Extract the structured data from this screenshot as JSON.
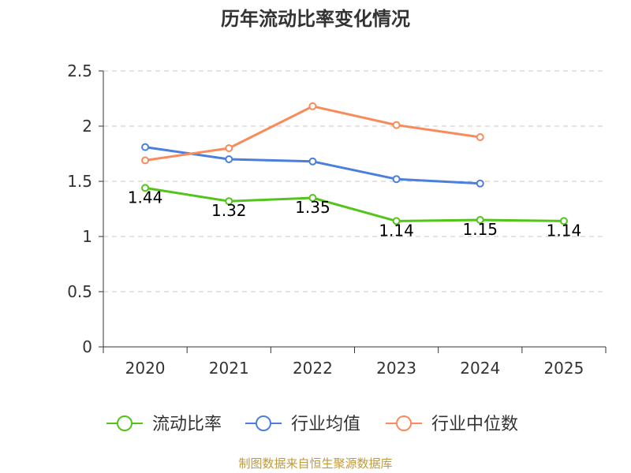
{
  "chart_data": {
    "type": "line",
    "title": "历年流动比率变化情况",
    "categories": [
      "2020",
      "2021",
      "2022",
      "2023",
      "2024",
      "2025"
    ],
    "ylim": [
      0,
      2.5
    ],
    "yticks": [
      "0",
      "0.5",
      "1",
      "1.5",
      "2",
      "2.5"
    ],
    "xlabel": "",
    "ylabel": "",
    "grid": true,
    "legend_position": "bottom",
    "series": [
      {
        "name": "流动比率",
        "color": "#52c41a",
        "values": [
          1.44,
          1.32,
          1.35,
          1.14,
          1.15,
          1.14
        ],
        "labels": [
          "1.44",
          "1.32",
          "1.35",
          "1.14",
          "1.15",
          "1.14"
        ]
      },
      {
        "name": "行业均值",
        "color": "#4a7fdd",
        "values": [
          1.81,
          1.7,
          1.68,
          1.52,
          1.48,
          null
        ]
      },
      {
        "name": "行业中位数",
        "color": "#f98b5b",
        "values": [
          1.69,
          1.8,
          2.18,
          2.01,
          1.9,
          null
        ]
      }
    ]
  },
  "footer": {
    "source": "制图数据来自恒生聚源数据库"
  }
}
